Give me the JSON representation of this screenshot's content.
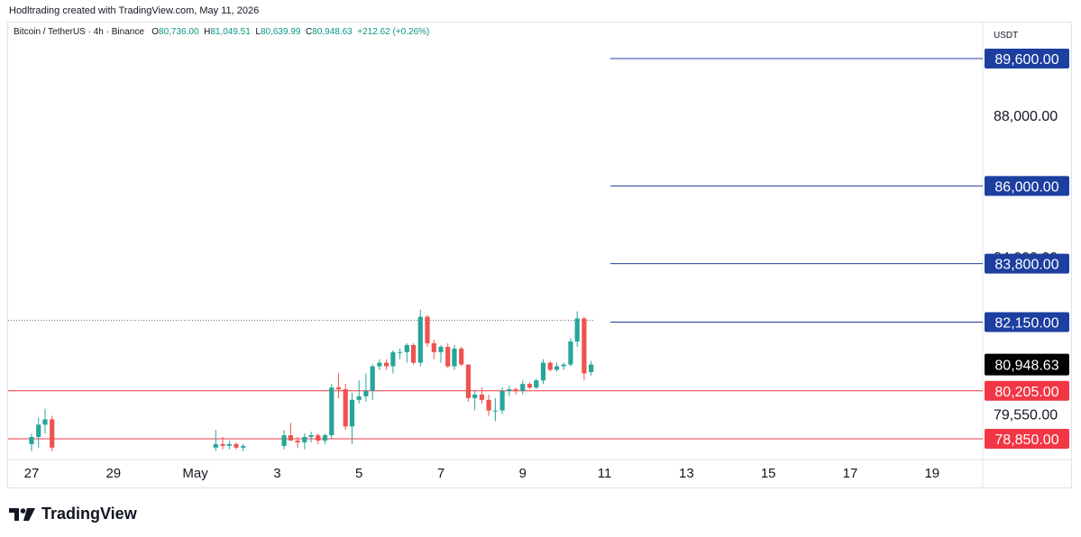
{
  "header": {
    "created_note": "Hodltrading created with TradingView.com, May 11, 2026"
  },
  "legend": {
    "symbol": "Bitcoin / TetherUS · 4h · Binance",
    "o_label": "O",
    "o_value": "80,736.00",
    "h_label": "H",
    "h_value": "81,049.51",
    "l_label": "L",
    "l_value": "80,639.99",
    "c_label": "C",
    "c_value": "80,948.63",
    "change": "+212.62 (+0.26%)"
  },
  "brand": {
    "name": "TradingView"
  },
  "colors": {
    "up": "#26a69a",
    "down": "#ef5350",
    "resistance": "#1c3fa0",
    "support": "#f23645",
    "price_badge": "#000000"
  },
  "chart_data": {
    "type": "candlestick",
    "currency": "USDT",
    "y_ticks": [
      88000,
      84000,
      79550
    ],
    "y_tick_labels": [
      "88,000.00",
      "84,000.00",
      "79,550.00"
    ],
    "ylim": [
      78500,
      91100
    ],
    "x_ticks": [
      "27",
      "29",
      "May",
      "3",
      "5",
      "7",
      "9",
      "11",
      "13",
      "15",
      "17",
      "19"
    ],
    "levels": [
      {
        "value": 89600,
        "label": "89,600.00",
        "kind": "resistance"
      },
      {
        "value": 86000,
        "label": "86,000.00",
        "kind": "resistance"
      },
      {
        "value": 83800,
        "label": "83,800.00",
        "kind": "resistance"
      },
      {
        "value": 82150,
        "label": "82,150.00",
        "kind": "resistance"
      },
      {
        "value": 80205,
        "label": "80,205.00",
        "kind": "support"
      },
      {
        "value": 78850,
        "label": "78,850.00",
        "kind": "support"
      }
    ],
    "current_price": {
      "value": 80948.63,
      "label": "80,948.63"
    },
    "candles": [
      {
        "day": 0.0,
        "o": 78700,
        "h": 79000,
        "l": 78500,
        "c": 78900
      },
      {
        "day": 0.17,
        "o": 78900,
        "h": 79450,
        "l": 78600,
        "c": 79250
      },
      {
        "day": 0.33,
        "o": 79250,
        "h": 79700,
        "l": 79000,
        "c": 79400
      },
      {
        "day": 0.5,
        "o": 79400,
        "h": 79500,
        "l": 78500,
        "c": 78600
      },
      {
        "day": 4.5,
        "o": 78600,
        "h": 79100,
        "l": 78500,
        "c": 78700
      },
      {
        "day": 4.67,
        "o": 78700,
        "h": 78900,
        "l": 78550,
        "c": 78650
      },
      {
        "day": 4.83,
        "o": 78650,
        "h": 78800,
        "l": 78550,
        "c": 78700
      },
      {
        "day": 5.0,
        "o": 78700,
        "h": 78750,
        "l": 78550,
        "c": 78600
      },
      {
        "day": 5.17,
        "o": 78600,
        "h": 78700,
        "l": 78500,
        "c": 78650
      },
      {
        "day": 6.17,
        "o": 78650,
        "h": 79100,
        "l": 78550,
        "c": 78950
      },
      {
        "day": 6.33,
        "o": 78950,
        "h": 79300,
        "l": 78800,
        "c": 78800
      },
      {
        "day": 6.5,
        "o": 78800,
        "h": 78900,
        "l": 78600,
        "c": 78750
      },
      {
        "day": 6.67,
        "o": 78750,
        "h": 79000,
        "l": 78550,
        "c": 78900
      },
      {
        "day": 6.83,
        "o": 78900,
        "h": 79050,
        "l": 78750,
        "c": 78950
      },
      {
        "day": 7.0,
        "o": 78950,
        "h": 79000,
        "l": 78700,
        "c": 78800
      },
      {
        "day": 7.17,
        "o": 78800,
        "h": 79000,
        "l": 78700,
        "c": 78950
      },
      {
        "day": 7.33,
        "o": 78950,
        "h": 80400,
        "l": 78850,
        "c": 80300
      },
      {
        "day": 7.5,
        "o": 80300,
        "h": 80700,
        "l": 80000,
        "c": 80250
      },
      {
        "day": 7.67,
        "o": 80250,
        "h": 80400,
        "l": 79100,
        "c": 79200
      },
      {
        "day": 7.83,
        "o": 79200,
        "h": 80150,
        "l": 78700,
        "c": 79950
      },
      {
        "day": 8.0,
        "o": 79950,
        "h": 80500,
        "l": 79850,
        "c": 80050
      },
      {
        "day": 8.17,
        "o": 80050,
        "h": 80700,
        "l": 79900,
        "c": 80200
      },
      {
        "day": 8.33,
        "o": 80200,
        "h": 80950,
        "l": 79950,
        "c": 80900
      },
      {
        "day": 8.5,
        "o": 80900,
        "h": 81100,
        "l": 80800,
        "c": 81000
      },
      {
        "day": 8.67,
        "o": 81000,
        "h": 81100,
        "l": 80800,
        "c": 80900
      },
      {
        "day": 8.83,
        "o": 80900,
        "h": 81350,
        "l": 80700,
        "c": 81300
      },
      {
        "day": 9.0,
        "o": 81300,
        "h": 81400,
        "l": 81100,
        "c": 81300
      },
      {
        "day": 9.17,
        "o": 81300,
        "h": 81550,
        "l": 81000,
        "c": 81500
      },
      {
        "day": 9.33,
        "o": 81500,
        "h": 81550,
        "l": 80950,
        "c": 81000
      },
      {
        "day": 9.5,
        "o": 81000,
        "h": 82500,
        "l": 80900,
        "c": 82300
      },
      {
        "day": 9.67,
        "o": 82300,
        "h": 82350,
        "l": 81450,
        "c": 81550
      },
      {
        "day": 9.83,
        "o": 81550,
        "h": 81650,
        "l": 81100,
        "c": 81300
      },
      {
        "day": 10.0,
        "o": 81300,
        "h": 81500,
        "l": 81000,
        "c": 81450
      },
      {
        "day": 10.17,
        "o": 81450,
        "h": 81550,
        "l": 80850,
        "c": 80900
      },
      {
        "day": 10.33,
        "o": 80900,
        "h": 81500,
        "l": 80800,
        "c": 81400
      },
      {
        "day": 10.5,
        "o": 81400,
        "h": 81450,
        "l": 80900,
        "c": 80950
      },
      {
        "day": 10.67,
        "o": 80950,
        "h": 80950,
        "l": 79900,
        "c": 80000
      },
      {
        "day": 10.83,
        "o": 80000,
        "h": 80200,
        "l": 79650,
        "c": 80100
      },
      {
        "day": 11.0,
        "o": 80100,
        "h": 80300,
        "l": 79850,
        "c": 79950
      },
      {
        "day": 11.17,
        "o": 79950,
        "h": 80100,
        "l": 79500,
        "c": 79650
      },
      {
        "day": 11.33,
        "o": 79650,
        "h": 80000,
        "l": 79350,
        "c": 79650
      },
      {
        "day": 11.5,
        "o": 79650,
        "h": 80300,
        "l": 79550,
        "c": 80200
      },
      {
        "day": 11.67,
        "o": 80200,
        "h": 80350,
        "l": 80050,
        "c": 80250
      },
      {
        "day": 11.83,
        "o": 80250,
        "h": 80300,
        "l": 80100,
        "c": 80200
      },
      {
        "day": 12.0,
        "o": 80200,
        "h": 80500,
        "l": 80100,
        "c": 80400
      },
      {
        "day": 12.17,
        "o": 80400,
        "h": 80450,
        "l": 80250,
        "c": 80300
      },
      {
        "day": 12.33,
        "o": 80300,
        "h": 80550,
        "l": 80250,
        "c": 80500
      },
      {
        "day": 12.5,
        "o": 80500,
        "h": 81100,
        "l": 80400,
        "c": 81000
      },
      {
        "day": 12.67,
        "o": 81000,
        "h": 81050,
        "l": 80750,
        "c": 80800
      },
      {
        "day": 12.83,
        "o": 80800,
        "h": 81000,
        "l": 80750,
        "c": 80900
      },
      {
        "day": 13.0,
        "o": 80900,
        "h": 81000,
        "l": 80800,
        "c": 80950
      },
      {
        "day": 13.17,
        "o": 80950,
        "h": 81700,
        "l": 80900,
        "c": 81600
      },
      {
        "day": 13.33,
        "o": 81600,
        "h": 82450,
        "l": 81450,
        "c": 82250
      },
      {
        "day": 13.5,
        "o": 82250,
        "h": 82300,
        "l": 80500,
        "c": 80700
      },
      {
        "day": 13.67,
        "o": 80736,
        "h": 81050,
        "l": 80640,
        "c": 80949
      }
    ]
  }
}
